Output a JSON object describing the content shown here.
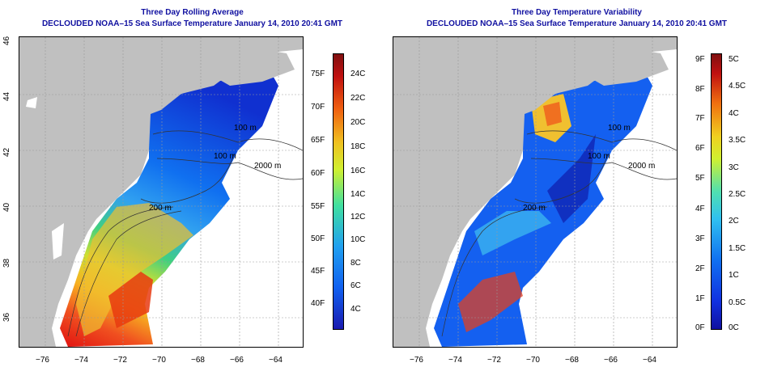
{
  "left": {
    "title_line1": "Three Day Rolling Average",
    "title_line2": "DECLOUDED NOAA–15 Sea Surface Temperature January 14, 2010 20:41 GMT",
    "colorbar_f": [
      "75F",
      "70F",
      "65F",
      "60F",
      "55F",
      "50F",
      "45F",
      "40F"
    ],
    "colorbar_c": [
      "24C",
      "22C",
      "20C",
      "18C",
      "16C",
      "14C",
      "12C",
      "10C",
      "8C",
      "6C",
      "4C"
    ]
  },
  "right": {
    "title_line1": "Three Day Temperature Variability",
    "title_line2": "DECLOUDED NOAA–15 Sea Surface Temperature January 14, 2010 20:41 GMT",
    "colorbar_f": [
      "9F",
      "8F",
      "7F",
      "6F",
      "5F",
      "4F",
      "3F",
      "2F",
      "1F",
      "0F"
    ],
    "colorbar_c": [
      "5C",
      "4.5C",
      "4C",
      "3.5C",
      "3C",
      "2.5C",
      "2C",
      "1.5C",
      "1C",
      "0.5C",
      "0C"
    ]
  },
  "x_ticks": [
    "−76",
    "−74",
    "−72",
    "−70",
    "−68",
    "−66",
    "−64"
  ],
  "y_ticks": [
    "36",
    "38",
    "40",
    "42",
    "44",
    "46"
  ],
  "contour_labels": [
    "100 m",
    "100 m",
    "2000 m",
    "200 m",
    "200 m"
  ],
  "colors": {
    "title": "#1010a0",
    "land": "#c0c0c0",
    "ocean_none": "#ffffff"
  }
}
